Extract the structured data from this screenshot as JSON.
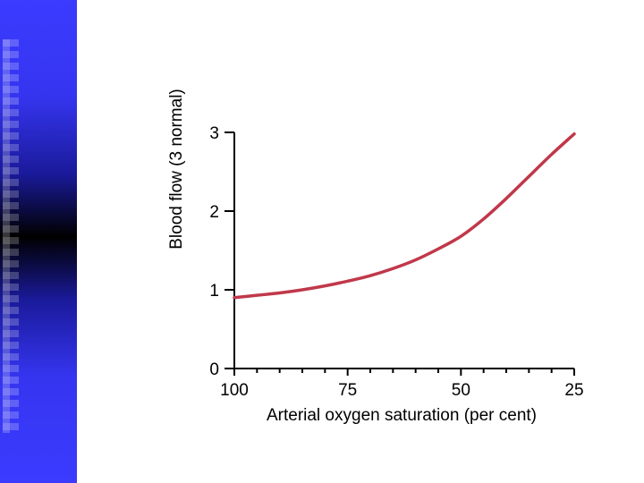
{
  "slide": {
    "sidebar_color": "#3b3bff"
  },
  "chart_data": {
    "type": "line",
    "title": "",
    "xlabel": "Arterial oxygen saturation (per cent)",
    "ylabel": "Blood flow (3 normal)",
    "x_ticks": [
      100,
      75,
      50,
      25
    ],
    "y_ticks": [
      0,
      1,
      2,
      3
    ],
    "xlim": [
      100,
      25
    ],
    "ylim": [
      0,
      3
    ],
    "grid": false,
    "series": [
      {
        "name": "Blood flow",
        "color": "#c0384a",
        "x": [
          100,
          95,
          90,
          85,
          80,
          75,
          70,
          65,
          60,
          55,
          50,
          45,
          40,
          35,
          30,
          25
        ],
        "y": [
          0.9,
          0.93,
          0.96,
          1.0,
          1.05,
          1.11,
          1.18,
          1.27,
          1.38,
          1.52,
          1.68,
          1.9,
          2.16,
          2.44,
          2.72,
          2.98
        ]
      }
    ]
  }
}
